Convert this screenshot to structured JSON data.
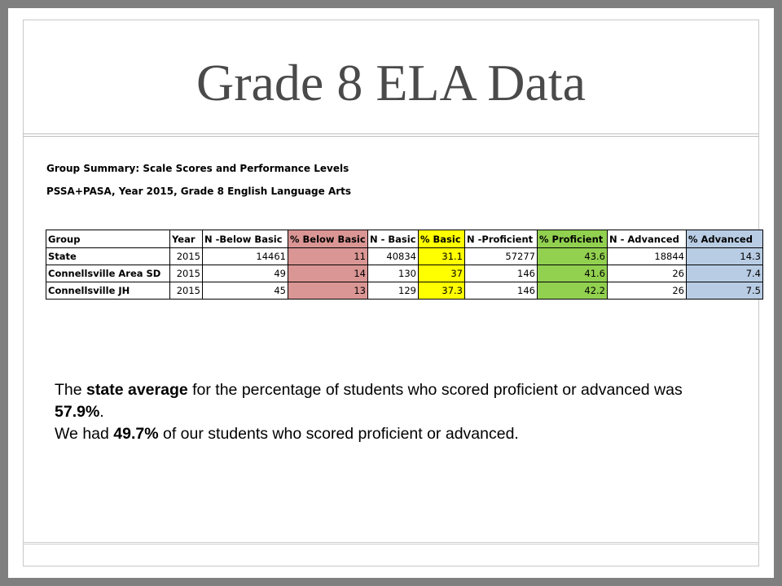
{
  "slide": {
    "title": "Grade 8 ELA Data",
    "subtitle_1": "Group Summary: Scale Scores and Performance Levels",
    "subtitle_2": "PSSA+PASA, Year 2015, Grade 8 English Language Arts"
  },
  "table": {
    "headers": [
      "Group",
      "Year",
      "N -Below Basic",
      "% Below Basic",
      "N - Basic",
      "% Basic",
      "N -Proficient",
      "% Proficient",
      "N - Advanced",
      "% Advanced"
    ],
    "rows": [
      [
        "State",
        "2015",
        "14461",
        "11",
        "40834",
        "31.1",
        "57277",
        "43.6",
        "18844",
        "14.3"
      ],
      [
        "Connellsville Area SD",
        "2015",
        "49",
        "14",
        "130",
        "37",
        "146",
        "41.6",
        "26",
        "7.4"
      ],
      [
        "Connellsville JH",
        "2015",
        "45",
        "13",
        "129",
        "37.3",
        "146",
        "42.2",
        "26",
        "7.5"
      ]
    ]
  },
  "summary": {
    "line1_a": "The ",
    "line1_b": "state average",
    "line1_c": " for the percentage of students who scored proficient or advanced was ",
    "line1_d": "57.9%",
    "line1_e": ".",
    "line2_a": "We had ",
    "line2_b": "49.7%",
    "line2_c": " of our students who scored proficient or advanced."
  },
  "colors": {
    "below_basic": "#da9694",
    "basic": "#ffff00",
    "proficient": "#92d050",
    "advanced": "#b8cce4"
  }
}
